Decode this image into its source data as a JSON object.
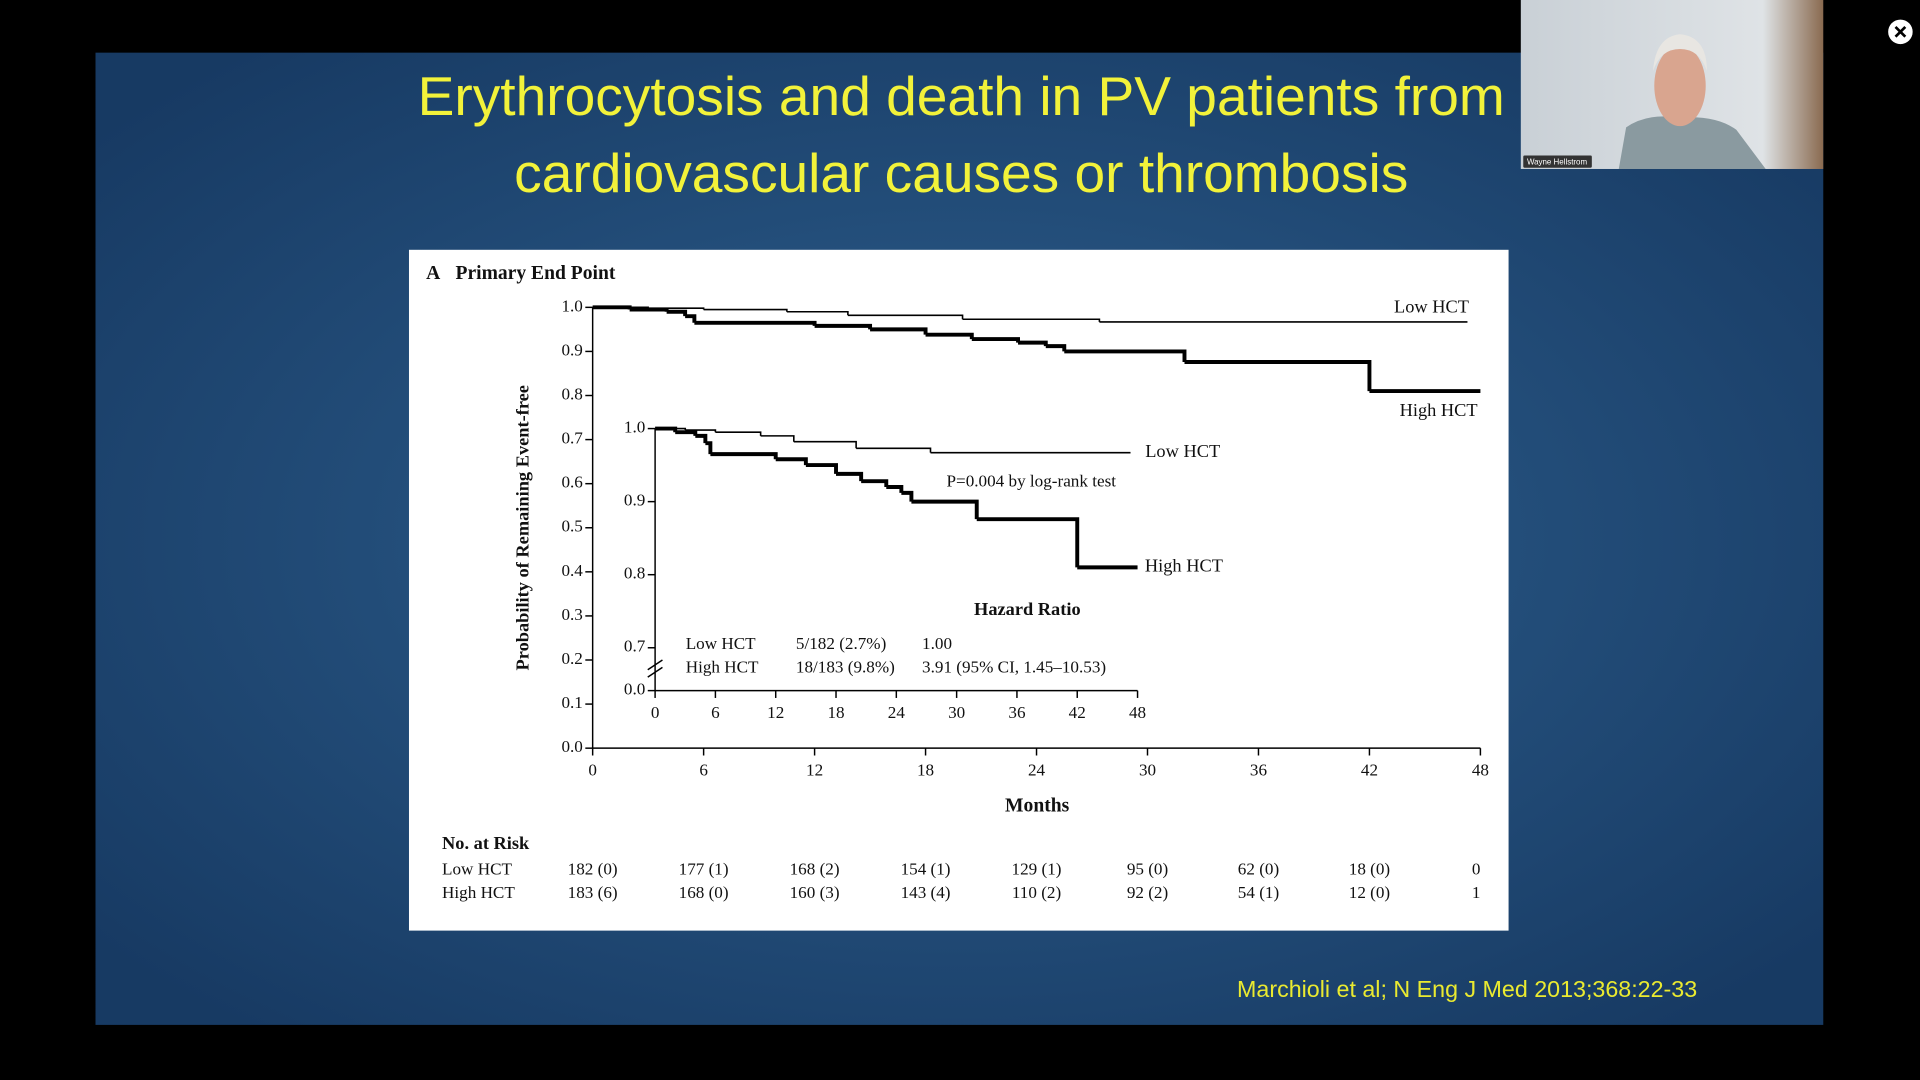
{
  "slide": {
    "title_lines": [
      "Erythrocytosis and death in PV patients from",
      "cardiovascular causes or thrombosis"
    ],
    "citation": "Marchioli et al; N Eng J Med 2013;368:22-33"
  },
  "webcam": {
    "name": "Wayne Hellstrom"
  },
  "chart_data": {
    "type": "line",
    "step": true,
    "panel_letter": "A",
    "title": "Primary End Point",
    "y_label": "Probability of Remaining Event-free",
    "x_label": "Months",
    "xlim": [
      0,
      48
    ],
    "xticks": [
      0,
      6,
      12,
      18,
      24,
      30,
      36,
      42,
      48
    ],
    "ylim": [
      0,
      1
    ],
    "yticks": [
      {
        "value": 0,
        "label": "0.0"
      },
      0.1,
      0.2,
      0.3,
      0.4,
      0.5,
      0.6,
      0.7,
      0.8,
      0.9,
      {
        "value": 1,
        "label": "1.0"
      }
    ],
    "series": [
      {
        "name": "Low HCT",
        "color": "#000000",
        "line_width": 1.3,
        "x": [
          0,
          3,
          6,
          10.5,
          13.8,
          20,
          27.4,
          47.3
        ],
        "values": [
          1.0,
          0.998,
          0.995,
          0.99,
          0.982,
          0.973,
          0.967,
          0.967
        ]
      },
      {
        "name": "High HCT",
        "color": "#000000",
        "line_width": 3.2,
        "x": [
          0,
          2,
          4,
          5,
          5.5,
          12,
          15,
          18,
          20.5,
          23,
          24.5,
          25.5,
          32,
          42,
          48
        ],
        "values": [
          1.0,
          0.995,
          0.99,
          0.98,
          0.965,
          0.958,
          0.95,
          0.938,
          0.928,
          0.92,
          0.912,
          0.9,
          0.876,
          0.81,
          0.81
        ]
      }
    ],
    "inset": {
      "xlim": [
        0,
        48
      ],
      "xticks": [
        0,
        6,
        12,
        18,
        24,
        30,
        36,
        42,
        48
      ],
      "ylim": [
        0.7,
        1.0
      ],
      "yticks": [
        {
          "value": 1,
          "label": "1.0"
        },
        0.9,
        0.8,
        0.7,
        {
          "value": 0,
          "label": "0.0"
        }
      ],
      "annotation": "P=0.004 by log-rank test",
      "hazard_table": {
        "title": "Hazard Ratio",
        "rows": [
          [
            "Low HCT",
            "5/182 (2.7%)",
            "1.00"
          ],
          [
            "High HCT",
            "18/183 (9.8%)",
            "3.91 (95% CI, 1.45–10.53)"
          ]
        ]
      }
    },
    "at_risk": {
      "title": "No. at Risk",
      "rows": [
        {
          "label": "Low HCT",
          "values": [
            "182 (0)",
            "177 (1)",
            "168 (2)",
            "154 (1)",
            "129 (1)",
            "95 (0)",
            "62 (0)",
            "18 (0)",
            "0"
          ]
        },
        {
          "label": "High HCT",
          "values": [
            "183 (6)",
            "168 (0)",
            "160 (3)",
            "143 (4)",
            "110 (2)",
            "92 (2)",
            "54 (1)",
            "12 (0)",
            "1"
          ]
        }
      ]
    }
  }
}
